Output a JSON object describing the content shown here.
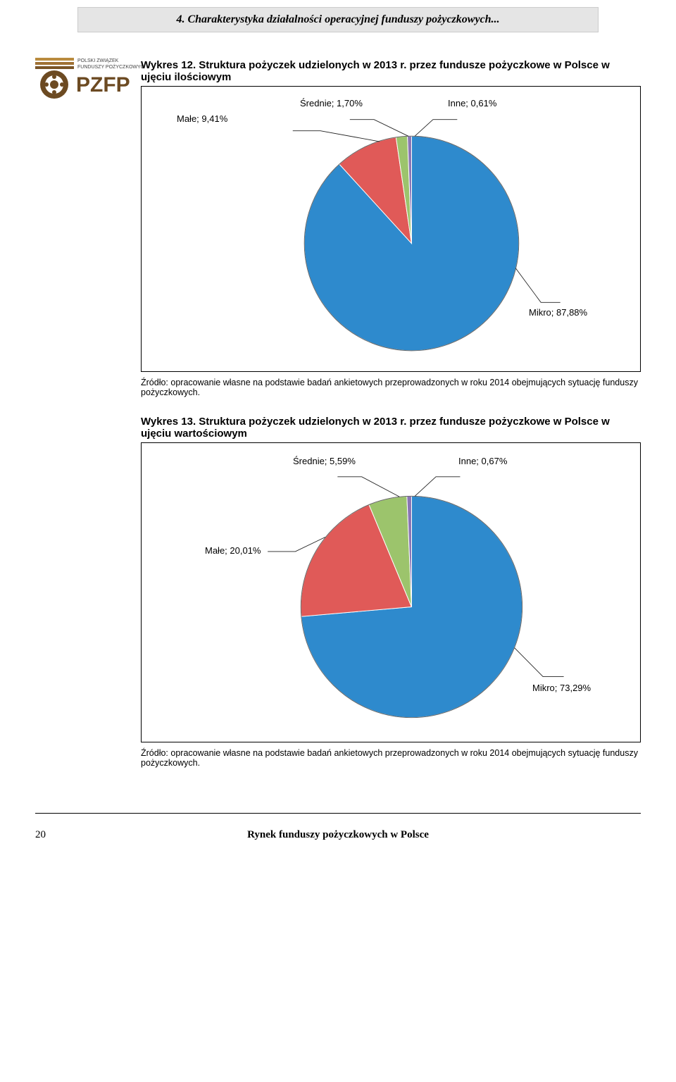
{
  "header": {
    "section_title": "4. Charakterystyka działalności operacyjnej funduszy pożyczkowych..."
  },
  "fig1": {
    "title": "Wykres 12. Struktura pożyczek udzielonych w 2013 r. przez fundusze pożyczkowe w Polsce w ujęciu ilościowym",
    "type": "pie",
    "slices": [
      {
        "name": "Mikro",
        "value": 87.88,
        "label": "Mikro; 87,88%",
        "color": "#2e8acd"
      },
      {
        "name": "Małe",
        "value": 9.41,
        "label": "Małe; 9,41%",
        "color": "#e05a58"
      },
      {
        "name": "Średnie",
        "value": 1.7,
        "label": "Średnie; 1,70%",
        "color": "#9cc46c"
      },
      {
        "name": "Inne",
        "value": 0.61,
        "label": "Inne; 0,61%",
        "color": "#8975b4"
      }
    ],
    "border": "#666",
    "source": "Źródło: opracowanie własne na podstawie badań ankietowych przeprowadzonych w roku 2014 obejmujących sytuację funduszy pożyczkowych."
  },
  "fig2": {
    "title": "Wykres 13. Struktura pożyczek udzielonych w 2013 r. przez fundusze pożyczkowe w Polsce w ujęciu wartościowym",
    "type": "pie",
    "slices": [
      {
        "name": "Mikro",
        "value": 73.29,
        "label": "Mikro; 73,29%",
        "color": "#2e8acd"
      },
      {
        "name": "Małe",
        "value": 20.01,
        "label": "Małe; 20,01%",
        "color": "#e05a58"
      },
      {
        "name": "Średnie",
        "value": 5.59,
        "label": "Średnie; 5,59%",
        "color": "#9cc46c"
      },
      {
        "name": "Inne",
        "value": 0.67,
        "label": "Inne; 0,67%",
        "color": "#8975b4"
      }
    ],
    "border": "#666",
    "source": "Źródło: opracowanie własne na podstawie badań ankietowych przeprowadzonych w roku 2014 obejmujących sytuację funduszy pożyczkowych."
  },
  "footer": {
    "page": "20",
    "running": "Rynek funduszy pożyczkowych w Polsce"
  }
}
